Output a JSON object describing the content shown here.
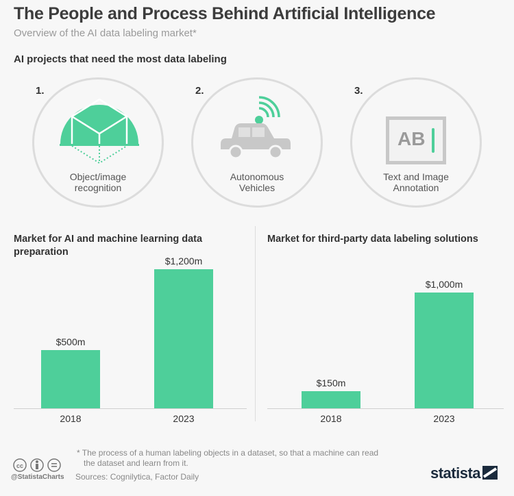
{
  "header": {
    "title": "The People and Process Behind Artificial Intelligence",
    "subtitle": "Overview of the AI data labeling market*"
  },
  "projects": {
    "heading": "AI projects that need the most data labeling",
    "items": [
      {
        "rank": "1.",
        "label_line1": "Object/image",
        "label_line2": "recognition",
        "icon": "cube-icon"
      },
      {
        "rank": "2.",
        "label_line1": "Autonomous",
        "label_line2": "Vehicles",
        "icon": "connected-car-icon"
      },
      {
        "rank": "3.",
        "label_line1": "Text and Image",
        "label_line2": "Annotation",
        "icon": "text-annotation-icon",
        "icon_text": "AB"
      }
    ]
  },
  "colors": {
    "accent": "#4ecf9a",
    "gray": "#c8c8c8",
    "text": "#333333"
  },
  "chart_data": [
    {
      "type": "bar",
      "title": "Market for AI and machine learning data preparation",
      "categories": [
        "2018",
        "2023"
      ],
      "values": [
        500,
        1200
      ],
      "value_labels": [
        "$500m",
        "$1,200m"
      ],
      "unit": "million USD",
      "ylim": [
        0,
        1200
      ]
    },
    {
      "type": "bar",
      "title": "Market for third-party data labeling solutions",
      "categories": [
        "2018",
        "2023"
      ],
      "values": [
        150,
        1000
      ],
      "value_labels": [
        "$150m",
        "$1,000m"
      ],
      "unit": "million USD",
      "ylim": [
        0,
        1200
      ]
    }
  ],
  "footer": {
    "note_line1": "* The process of a human labeling objects in a dataset, so that a machine can read",
    "note_line2": "the dataset and learn from it.",
    "sources": "Sources: Cognilytica, Factor Daily",
    "handle": "@StatistaCharts",
    "brand": "statista"
  }
}
